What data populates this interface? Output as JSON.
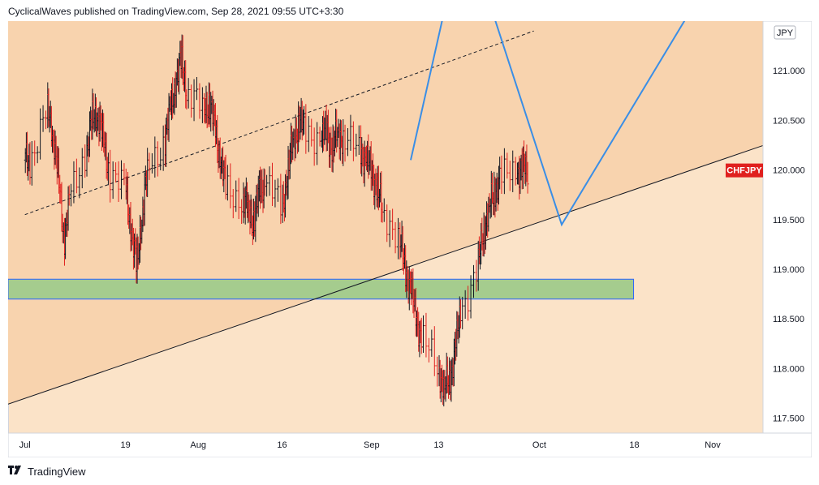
{
  "header": {
    "text": "CyclicalWaves published on TradingView.com, Sep 28, 2021 09:55 UTC+3:30"
  },
  "footer": {
    "brand": "TradingView"
  },
  "colors": {
    "upper_zone": "#f8d3ae",
    "lower_zone": "#fbe3c8",
    "support_zone": "#a5cc8e",
    "projection_line": "#3a8ee6",
    "candle_up": "#131722",
    "candle_down": "#e0201e",
    "symbol_tag_bg": "#e0201e"
  },
  "chart_data": {
    "type": "candlestick",
    "symbol": "CHFJPY",
    "currency": "JPY",
    "last_price": 120.0,
    "y_ticks": [
      "121.000",
      "120.500",
      "120.000",
      "119.500",
      "119.000",
      "118.500",
      "118.000",
      "117.500"
    ],
    "x_ticks": [
      "Jul",
      "19",
      "Aug",
      "16",
      "Sep",
      "13",
      "Oct",
      "18",
      "Nov"
    ],
    "x_tick_dates": [
      "2021-07-01",
      "2021-07-19",
      "2021-08-01",
      "2021-08-16",
      "2021-09-01",
      "2021-09-13",
      "2021-10-01",
      "2021-10-18",
      "2021-11-01"
    ],
    "ylim": [
      117.35,
      121.5
    ],
    "close_series_dates": [
      "2021-07-01",
      "2021-07-02",
      "2021-07-05",
      "2021-07-06",
      "2021-07-07",
      "2021-07-08",
      "2021-07-09",
      "2021-07-12",
      "2021-07-13",
      "2021-07-14",
      "2021-07-15",
      "2021-07-16",
      "2021-07-19",
      "2021-07-20",
      "2021-07-21",
      "2021-07-22",
      "2021-07-23",
      "2021-07-26",
      "2021-07-27",
      "2021-07-28",
      "2021-07-29",
      "2021-07-30",
      "2021-08-02",
      "2021-08-03",
      "2021-08-04",
      "2021-08-05",
      "2021-08-06",
      "2021-08-09",
      "2021-08-10",
      "2021-08-11",
      "2021-08-12",
      "2021-08-13",
      "2021-08-16",
      "2021-08-17",
      "2021-08-18",
      "2021-08-19",
      "2021-08-20",
      "2021-08-23",
      "2021-08-24",
      "2021-08-25",
      "2021-08-26",
      "2021-08-27",
      "2021-08-30",
      "2021-08-31",
      "2021-09-01",
      "2021-09-02",
      "2021-09-03",
      "2021-09-06",
      "2021-09-07",
      "2021-09-08",
      "2021-09-09",
      "2021-09-10",
      "2021-09-13",
      "2021-09-14",
      "2021-09-15",
      "2021-09-16",
      "2021-09-17",
      "2021-09-20",
      "2021-09-21",
      "2021-09-22",
      "2021-09-23",
      "2021-09-24",
      "2021-09-27",
      "2021-09-28"
    ],
    "close_series": [
      120.1,
      120.6,
      120.4,
      119.9,
      119.3,
      119.7,
      120.2,
      120.5,
      120.6,
      120.3,
      120.0,
      119.8,
      119.4,
      119.0,
      119.6,
      120.0,
      120.3,
      120.6,
      120.9,
      121.1,
      120.8,
      120.6,
      120.7,
      120.4,
      120.1,
      119.8,
      119.7,
      119.6,
      119.5,
      119.8,
      119.9,
      119.6,
      120.0,
      120.3,
      120.5,
      120.4,
      120.3,
      120.4,
      120.2,
      120.4,
      120.3,
      120.2,
      120.1,
      120.0,
      119.8,
      119.6,
      119.3,
      119.0,
      118.8,
      118.5,
      118.3,
      118.0,
      117.8,
      117.9,
      118.2,
      118.6,
      119.0,
      119.4,
      119.6,
      119.8,
      119.9,
      120.0,
      120.0,
      120.0
    ],
    "annotations": {
      "support_zone": {
        "from": 118.7,
        "to": 118.9
      },
      "ascending_trendline": {
        "start": [
          "2021-07-01",
          117.7
        ],
        "end": [
          "2021-11-05",
          120.15
        ]
      },
      "dashed_channel": {
        "start": [
          "2021-07-01",
          119.55
        ],
        "end": [
          "2021-09-30",
          121.4
        ]
      },
      "projection_path": [
        [
          "2021-09-08",
          120.1
        ],
        [
          "2021-09-14",
          121.6
        ],
        [
          "2021-09-22",
          121.7
        ],
        [
          "2021-10-05",
          119.45
        ],
        [
          "2021-10-28",
          121.6
        ]
      ]
    }
  }
}
